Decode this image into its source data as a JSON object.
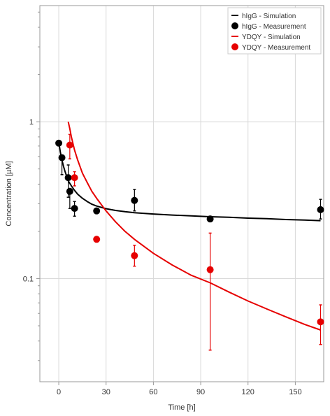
{
  "chart_data": {
    "type": "scatter",
    "title": "",
    "xlabel": "Time [h]",
    "ylabel": "Concentration [µM]",
    "xlim": [
      -12,
      168
    ],
    "ylim": [
      0.022,
      5.5
    ],
    "yscale": "log",
    "grid": true,
    "legend": "top-right",
    "x_ticks": [
      {
        "value": 0,
        "label": "0"
      },
      {
        "value": 30,
        "label": "30"
      },
      {
        "value": 60,
        "label": "60"
      },
      {
        "value": 90,
        "label": "90"
      },
      {
        "value": 120,
        "label": "120"
      },
      {
        "value": 150,
        "label": "150"
      }
    ],
    "y_ticks": [
      {
        "value": 0.1,
        "label": "0.1"
      },
      {
        "value": 1,
        "label": "1"
      }
    ],
    "series": [
      {
        "name": "hIgG - Simulation",
        "kind": "line",
        "color": "#000000",
        "x": [
          0,
          1,
          2,
          3,
          4,
          5,
          6,
          8,
          10,
          12,
          15,
          18,
          21,
          24,
          30,
          36,
          42,
          48,
          60,
          72,
          84,
          96,
          108,
          120,
          132,
          144,
          156,
          166
        ],
        "y": [
          0.74,
          0.64,
          0.57,
          0.52,
          0.48,
          0.45,
          0.42,
          0.39,
          0.365,
          0.345,
          0.325,
          0.31,
          0.298,
          0.29,
          0.279,
          0.272,
          0.267,
          0.263,
          0.258,
          0.254,
          0.251,
          0.248,
          0.246,
          0.243,
          0.241,
          0.238,
          0.236,
          0.234
        ]
      },
      {
        "name": "hIgG - Measurement",
        "kind": "markers",
        "color": "#000000",
        "x": [
          0,
          2,
          6,
          7,
          10,
          24,
          48,
          96,
          166
        ],
        "y": [
          0.73,
          0.59,
          0.44,
          0.36,
          0.28,
          0.27,
          0.315,
          0.24,
          0.275
        ],
        "err_low": [
          null,
          0.46,
          0.33,
          0.28,
          0.25,
          null,
          0.27,
          null,
          0.24
        ],
        "err_high": [
          null,
          null,
          0.53,
          null,
          0.31,
          null,
          0.37,
          null,
          0.32
        ]
      },
      {
        "name": "YDQY - Simulation",
        "kind": "line",
        "color": "#e60000",
        "x": [
          6,
          7,
          8,
          10,
          12,
          15,
          18,
          21,
          24,
          30,
          36,
          42,
          48,
          60,
          72,
          84,
          96,
          108,
          120,
          132,
          144,
          156,
          166
        ],
        "y": [
          1.0,
          0.9,
          0.8,
          0.66,
          0.57,
          0.47,
          0.41,
          0.36,
          0.325,
          0.27,
          0.23,
          0.2,
          0.178,
          0.145,
          0.122,
          0.105,
          0.094,
          0.082,
          0.072,
          0.064,
          0.057,
          0.051,
          0.047
        ]
      },
      {
        "name": "YDQY - Measurement",
        "kind": "markers",
        "color": "#e60000",
        "x": [
          7,
          10,
          24,
          48,
          96,
          166
        ],
        "y": [
          0.71,
          0.44,
          0.178,
          0.14,
          0.114,
          0.053
        ],
        "err_low": [
          0.58,
          0.39,
          null,
          0.12,
          0.035,
          0.038
        ],
        "err_high": [
          0.83,
          0.48,
          null,
          0.163,
          0.195,
          0.068
        ]
      }
    ]
  }
}
